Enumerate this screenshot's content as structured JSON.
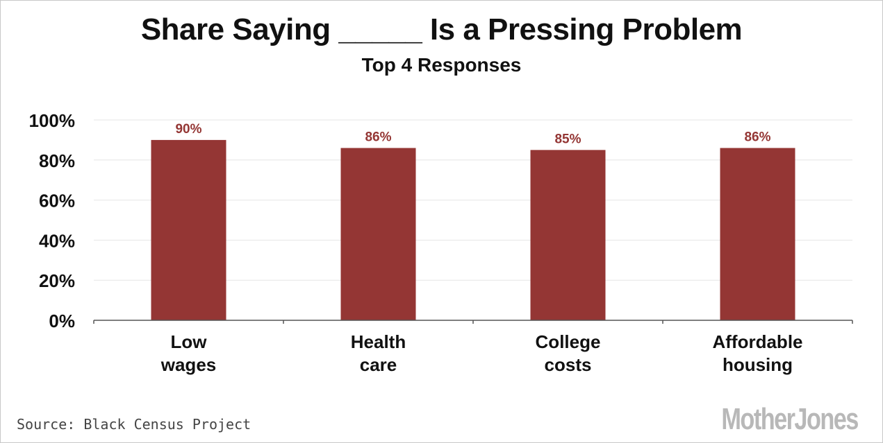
{
  "chart_data": {
    "type": "bar",
    "title": "Share Saying _____ Is a Pressing Problem",
    "subtitle": "Top 4 Responses",
    "categories": [
      [
        "Low",
        "wages"
      ],
      [
        "Health",
        "care"
      ],
      [
        "College",
        "costs"
      ],
      [
        "Affordable",
        "housing"
      ]
    ],
    "values": [
      90,
      86,
      85,
      86
    ],
    "data_labels": [
      "90%",
      "86%",
      "85%",
      "86%"
    ],
    "ylim": [
      0,
      100
    ],
    "y_ticks": [
      0,
      20,
      40,
      60,
      80,
      100
    ],
    "y_tick_labels": [
      "0%",
      "20%",
      "40%",
      "60%",
      "80%",
      "100%"
    ],
    "grid": true,
    "xlabel": "",
    "ylabel": "",
    "colors": {
      "bar": "#943634",
      "label": "#943634",
      "grid": "#e6e6e6",
      "axis": "#555555"
    }
  },
  "footer": {
    "source": "Source: Black Census Project",
    "logo": "MotherJones"
  }
}
